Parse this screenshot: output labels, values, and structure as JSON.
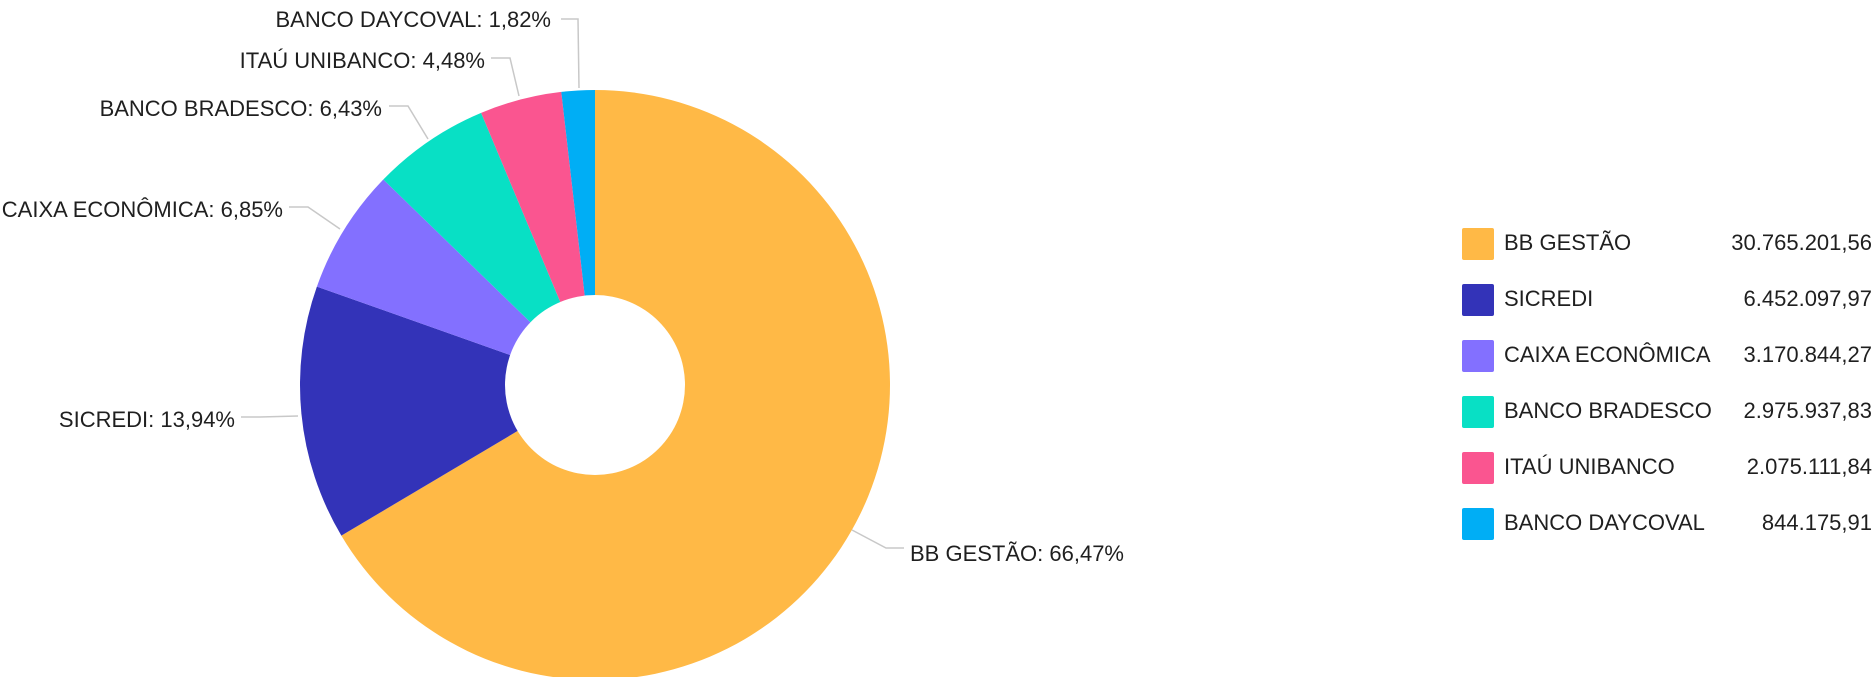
{
  "chart_data": {
    "type": "pie",
    "donut": true,
    "slices": [
      {
        "name": "BB GESTÃO",
        "value": 30765201.56,
        "value_label": "30.765.201,56",
        "percent_label": "66,47%",
        "color": "#FFB946"
      },
      {
        "name": "SICREDI",
        "value": 6452097.97,
        "value_label": "6.452.097,97",
        "percent_label": "13,94%",
        "color": "#3333B8"
      },
      {
        "name": "CAIXA ECONÔMICA",
        "value": 3170844.27,
        "value_label": "3.170.844,27",
        "percent_label": "6,85%",
        "color": "#8370FF"
      },
      {
        "name": "BANCO BRADESCO",
        "value": 2975937.83,
        "value_label": "2.975.937,83",
        "percent_label": "6,43%",
        "color": "#08E0C5"
      },
      {
        "name": "ITAÚ UNIBANCO",
        "value": 2075111.84,
        "value_label": "2.075.111,84",
        "percent_label": "4,48%",
        "color": "#FA5590"
      },
      {
        "name": "BANCO DAYCOVAL",
        "value": 844175.91,
        "value_label": "844.175,91",
        "percent_label": "1,82%",
        "color": "#00AEF5"
      }
    ],
    "label_separator": ": ",
    "legend_position": "right"
  }
}
